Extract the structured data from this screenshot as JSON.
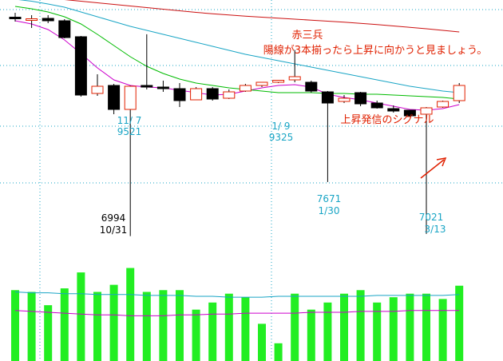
{
  "chart_data": {
    "type": "candlestick",
    "colors": {
      "up_body": "#ffffff",
      "up_outline": "#e02000",
      "down_body": "#000000",
      "ma_short": "#cc00cc",
      "ma_mid": "#00bb00",
      "ma_long": "#19a5c5",
      "ma_longest": "#cc1111",
      "volume": "#22ee22",
      "grid": "#19a5c5",
      "annotation_red": "#e02000",
      "annotation_blue": "#19a5c5"
    },
    "price_axis": {
      "ymin": 6850,
      "ymax": 9950
    },
    "candles": [
      {
        "o": 9735,
        "h": 9790,
        "l": 9680,
        "c": 9715
      },
      {
        "o": 9710,
        "h": 9760,
        "l": 9600,
        "c": 9715
      },
      {
        "o": 9720,
        "h": 9760,
        "l": 9660,
        "c": 9690
      },
      {
        "o": 9690,
        "h": 9710,
        "l": 9470,
        "c": 9480
      },
      {
        "o": 9490,
        "h": 9500,
        "l": 8740,
        "c": 8760
      },
      {
        "o": 8780,
        "h": 9020,
        "l": 8750,
        "c": 8870
      },
      {
        "o": 8880,
        "h": 8900,
        "l": 8520,
        "c": 8580
      },
      {
        "o": 8580,
        "h": 8880,
        "l": 6994,
        "c": 8870
      },
      {
        "o": 8880,
        "h": 9521,
        "l": 8830,
        "c": 8860
      },
      {
        "o": 8860,
        "h": 8940,
        "l": 8800,
        "c": 8840
      },
      {
        "o": 8840,
        "h": 8910,
        "l": 8610,
        "c": 8690
      },
      {
        "o": 8700,
        "h": 8860,
        "l": 8700,
        "c": 8840
      },
      {
        "o": 8840,
        "h": 8860,
        "l": 8690,
        "c": 8710
      },
      {
        "o": 8720,
        "h": 8830,
        "l": 8710,
        "c": 8800
      },
      {
        "o": 8810,
        "h": 8900,
        "l": 8800,
        "c": 8880
      },
      {
        "o": 8880,
        "h": 8920,
        "l": 8860,
        "c": 8920
      },
      {
        "o": 8920,
        "h": 8950,
        "l": 8910,
        "c": 8945
      },
      {
        "o": 8950,
        "h": 9325,
        "l": 8920,
        "c": 8990
      },
      {
        "o": 8920,
        "h": 8940,
        "l": 8790,
        "c": 8810
      },
      {
        "o": 8800,
        "h": 8810,
        "l": 7671,
        "c": 8660
      },
      {
        "o": 8680,
        "h": 8760,
        "l": 8660,
        "c": 8720
      },
      {
        "o": 8790,
        "h": 8800,
        "l": 8620,
        "c": 8650
      },
      {
        "o": 8660,
        "h": 8690,
        "l": 8590,
        "c": 8600
      },
      {
        "o": 8590,
        "h": 8630,
        "l": 8540,
        "c": 8560
      },
      {
        "o": 8570,
        "h": 8570,
        "l": 8490,
        "c": 8500
      },
      {
        "o": 8520,
        "h": 8610,
        "l": 7021,
        "c": 8600
      },
      {
        "o": 8610,
        "h": 8690,
        "l": 8600,
        "c": 8680
      },
      {
        "o": 8690,
        "h": 8910,
        "l": 8660,
        "c": 8880
      }
    ],
    "moving_averages": [
      {
        "color_key": "ma_short",
        "values": [
          9690,
          9650,
          9580,
          9450,
          9280,
          9100,
          8950,
          8880,
          8860,
          8850,
          8820,
          8790,
          8760,
          8770,
          8810,
          8850,
          8880,
          8890,
          8860,
          8770,
          8730,
          8700,
          8660,
          8620,
          8580,
          8570,
          8590,
          8640
        ]
      },
      {
        "color_key": "ma_mid",
        "values": [
          9870,
          9840,
          9800,
          9740,
          9650,
          9520,
          9380,
          9240,
          9120,
          9030,
          8960,
          8910,
          8880,
          8850,
          8830,
          8810,
          8790,
          8790,
          8790,
          8780,
          8780,
          8770,
          8770,
          8760,
          8750,
          8740,
          8730,
          8710
        ]
      },
      {
        "color_key": "ma_long",
        "values": [
          9960,
          9935,
          9900,
          9860,
          9800,
          9740,
          9680,
          9620,
          9570,
          9520,
          9470,
          9420,
          9370,
          9320,
          9270,
          9230,
          9190,
          9150,
          9110,
          9070,
          9030,
          8990,
          8950,
          8910,
          8870,
          8840,
          8810,
          8790
        ]
      },
      {
        "color_key": "ma_longest",
        "values": [
          9999,
          9990,
          9975,
          9955,
          9935,
          9915,
          9895,
          9875,
          9855,
          9835,
          9815,
          9795,
          9778,
          9762,
          9748,
          9735,
          9722,
          9710,
          9698,
          9685,
          9672,
          9658,
          9642,
          9625,
          9608,
          9590,
          9570,
          9550
        ]
      }
    ],
    "volume": {
      "values": [
        80,
        78,
        63,
        82,
        100,
        78,
        86,
        105,
        78,
        80,
        80,
        58,
        66,
        76,
        72,
        42,
        20,
        76,
        58,
        66,
        76,
        80,
        66,
        72,
        76,
        76,
        70,
        85
      ],
      "ma_short": [
        57,
        56,
        55,
        54,
        53,
        52,
        52,
        51,
        51,
        51,
        52,
        52,
        53,
        53,
        54,
        54,
        54,
        54,
        55,
        55,
        55,
        56,
        56,
        56,
        57,
        57,
        57,
        57
      ],
      "ma_long": [
        78,
        77,
        77,
        76,
        76,
        75,
        75,
        75,
        74,
        74,
        74,
        73,
        73,
        72,
        72,
        72,
        73,
        73,
        73,
        73,
        73,
        73,
        74,
        74,
        74,
        74,
        74,
        75
      ],
      "max": 110
    },
    "annotations": [
      {
        "text": "赤三兵",
        "color": "annotation_red"
      },
      {
        "text": "陽線が3本揃ったら上昇に向かうと見ましょう。",
        "color": "annotation_red"
      },
      {
        "text": "上昇発信のシグナル",
        "color": "annotation_red"
      },
      {
        "text": "11/ 7",
        "color": "annotation_blue"
      },
      {
        "text": "9521",
        "color": "annotation_blue"
      },
      {
        "text": "1/ 9",
        "color": "annotation_blue"
      },
      {
        "text": "9325",
        "color": "annotation_blue"
      },
      {
        "text": "6994",
        "color": "black"
      },
      {
        "text": "10/31",
        "color": "black"
      },
      {
        "text": "7671",
        "color": "annotation_blue"
      },
      {
        "text": "1/30",
        "color": "annotation_blue"
      },
      {
        "text": "7021",
        "color": "annotation_blue"
      },
      {
        "text": "3/13",
        "color": "annotation_blue"
      }
    ]
  }
}
